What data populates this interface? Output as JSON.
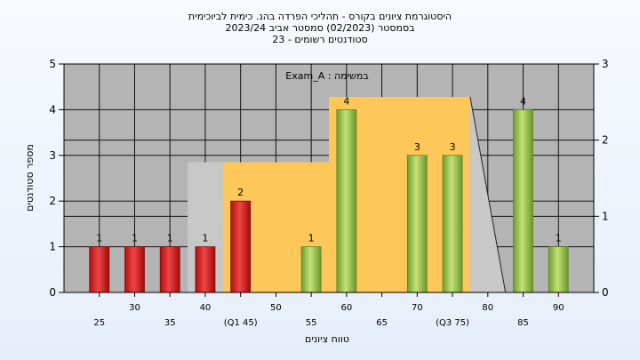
{
  "header": {
    "title_line1": "היסטוגרמת ציונים בקורס - תהליכי הפרדה בהנ. כימית לביוכימית",
    "title_line2": "בסמסטר  (02/2023)  סמסטר אביב 2023/24",
    "title_line3": "23 - סטודנטים רשומים"
  },
  "chart_data": {
    "type": "bar",
    "title": "Exam_A : במשימה",
    "xlabel": "טווח ציונים",
    "ylabel": "מספר סטודנטים",
    "ylim": [
      0,
      5
    ],
    "y2lim": [
      0,
      3
    ],
    "x_range": [
      20,
      95
    ],
    "yticks": [
      0,
      1,
      2,
      3,
      4,
      5
    ],
    "y2ticks": [
      0,
      1,
      2,
      3
    ],
    "xticks_upper": [
      "30",
      "40",
      "50",
      "60",
      "70",
      "80",
      "90"
    ],
    "xticks_lower": [
      "25",
      "35",
      "(Q1 45)",
      "55",
      "65",
      "(Q3 75)",
      "85"
    ],
    "bars": [
      {
        "x": 25,
        "value": 1,
        "color": "red"
      },
      {
        "x": 30,
        "value": 1,
        "color": "red"
      },
      {
        "x": 35,
        "value": 1,
        "color": "red"
      },
      {
        "x": 40,
        "value": 1,
        "color": "red"
      },
      {
        "x": 45,
        "value": 2,
        "color": "red"
      },
      {
        "x": 55,
        "value": 1,
        "color": "green"
      },
      {
        "x": 60,
        "value": 4,
        "color": "green"
      },
      {
        "x": 70,
        "value": 3,
        "color": "green"
      },
      {
        "x": 75,
        "value": 3,
        "color": "green"
      },
      {
        "x": 85,
        "value": 4,
        "color": "green"
      },
      {
        "x": 90,
        "value": 1,
        "color": "green"
      }
    ],
    "overlay_area": [
      [
        42.5,
        0
      ],
      [
        42.5,
        2.85
      ],
      [
        52.5,
        2.85
      ],
      [
        57.5,
        2.85
      ],
      [
        57.5,
        4.28
      ],
      [
        77.5,
        4.28
      ],
      [
        77.5,
        0
      ]
    ],
    "overlay_tail": [
      [
        37.5,
        2.85
      ],
      [
        42.5,
        2.85
      ],
      [
        42.5,
        0
      ],
      [
        37.5,
        0
      ]
    ],
    "overlay_right": [
      [
        77.5,
        4.28
      ],
      [
        82.5,
        0
      ],
      [
        77.5,
        0
      ]
    ],
    "colors": {
      "plot_bg": "#b4b4b4",
      "overlay": "#fdc75a",
      "overlay_gray": "#c8c8c8",
      "red_bar": "#e32b2b",
      "green_bar": "#9bc94a"
    }
  }
}
